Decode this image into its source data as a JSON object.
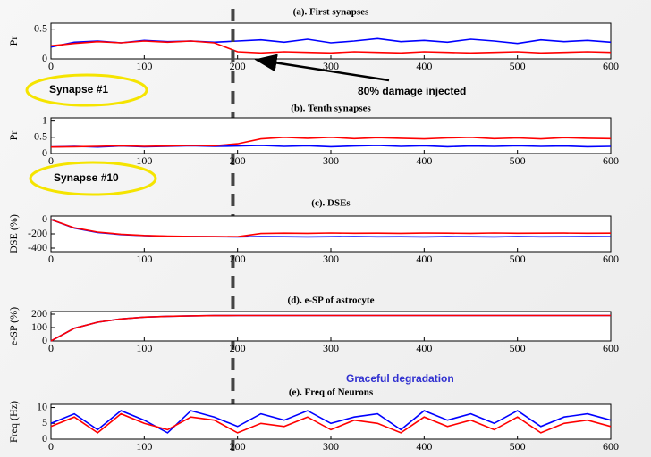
{
  "chart_data": [
    {
      "type": "line",
      "title": "(a). First synapses",
      "y_label": "Pr",
      "x": [
        0,
        25,
        50,
        75,
        100,
        125,
        150,
        175,
        200,
        225,
        250,
        275,
        300,
        325,
        350,
        375,
        400,
        425,
        450,
        475,
        500,
        525,
        550,
        575,
        600
      ],
      "xlim": [
        0,
        600
      ],
      "xticks": [
        0,
        100,
        200,
        300,
        400,
        500,
        600
      ],
      "ylim": [
        0,
        0.6
      ],
      "yticks": [
        0,
        0.5
      ],
      "event_x": 195,
      "annotations": [
        "Synapse #1",
        "80% damage injected"
      ],
      "series": [
        {
          "color": "#0000ff",
          "values": [
            0.2,
            0.28,
            0.3,
            0.27,
            0.31,
            0.29,
            0.3,
            0.28,
            0.3,
            0.32,
            0.28,
            0.33,
            0.27,
            0.3,
            0.34,
            0.29,
            0.31,
            0.28,
            0.33,
            0.3,
            0.26,
            0.32,
            0.29,
            0.31,
            0.28
          ]
        },
        {
          "color": "#ff0000",
          "values": [
            0.22,
            0.26,
            0.29,
            0.27,
            0.3,
            0.28,
            0.3,
            0.27,
            0.12,
            0.1,
            0.12,
            0.11,
            0.1,
            0.12,
            0.11,
            0.1,
            0.12,
            0.11,
            0.1,
            0.11,
            0.12,
            0.1,
            0.11,
            0.12,
            0.11
          ]
        }
      ]
    },
    {
      "type": "line",
      "title": "(b). Tenth synapses",
      "y_label": "Pr",
      "x": [
        0,
        25,
        50,
        75,
        100,
        125,
        150,
        175,
        200,
        225,
        250,
        275,
        300,
        325,
        350,
        375,
        400,
        425,
        450,
        475,
        500,
        525,
        550,
        575,
        600
      ],
      "xlim": [
        0,
        600
      ],
      "xticks": [
        0,
        100,
        200,
        300,
        400,
        500,
        600
      ],
      "ylim": [
        0,
        1.1
      ],
      "yticks": [
        0,
        0.5,
        1
      ],
      "annotations": [
        "Synapse #10"
      ],
      "series": [
        {
          "color": "#0000ff",
          "values": [
            0.2,
            0.22,
            0.2,
            0.23,
            0.21,
            0.22,
            0.24,
            0.22,
            0.23,
            0.25,
            0.22,
            0.24,
            0.21,
            0.23,
            0.25,
            0.22,
            0.24,
            0.21,
            0.23,
            0.22,
            0.24,
            0.22,
            0.23,
            0.21,
            0.22
          ]
        },
        {
          "color": "#ff0000",
          "values": [
            0.2,
            0.21,
            0.22,
            0.24,
            0.22,
            0.23,
            0.25,
            0.24,
            0.3,
            0.45,
            0.5,
            0.47,
            0.5,
            0.46,
            0.49,
            0.47,
            0.45,
            0.48,
            0.5,
            0.46,
            0.48,
            0.45,
            0.49,
            0.47,
            0.46
          ]
        }
      ]
    },
    {
      "type": "line",
      "title": "(c). DSEs",
      "y_label": "DSE (%)",
      "x": [
        0,
        25,
        50,
        75,
        100,
        125,
        150,
        175,
        200,
        225,
        250,
        275,
        300,
        325,
        350,
        375,
        400,
        425,
        450,
        475,
        500,
        525,
        550,
        575,
        600
      ],
      "xlim": [
        0,
        600
      ],
      "xticks": [
        0,
        100,
        200,
        300,
        400,
        500,
        600
      ],
      "ylim": [
        -450,
        50
      ],
      "yticks": [
        -400,
        -200,
        0
      ],
      "series": [
        {
          "color": "#0000ff",
          "values": [
            0,
            -120,
            -180,
            -210,
            -225,
            -235,
            -238,
            -240,
            -242,
            -238,
            -240,
            -243,
            -240,
            -238,
            -241,
            -240,
            -243,
            -239,
            -240,
            -242,
            -238,
            -241,
            -240,
            -239,
            -240
          ]
        },
        {
          "color": "#ff0000",
          "values": [
            0,
            -115,
            -175,
            -205,
            -222,
            -232,
            -236,
            -238,
            -240,
            -195,
            -190,
            -192,
            -188,
            -191,
            -190,
            -193,
            -189,
            -190,
            -192,
            -188,
            -191,
            -190,
            -189,
            -191,
            -190
          ]
        }
      ]
    },
    {
      "type": "line",
      "title": "(d). e-SP of astrocyte",
      "y_label": "e-SP (%)",
      "x": [
        0,
        25,
        50,
        75,
        100,
        125,
        150,
        175,
        200,
        225,
        250,
        275,
        300,
        325,
        350,
        375,
        400,
        425,
        450,
        475,
        500,
        525,
        550,
        575,
        600
      ],
      "xlim": [
        0,
        600
      ],
      "xticks": [
        0,
        100,
        200,
        300,
        400,
        500,
        600
      ],
      "ylim": [
        0,
        220
      ],
      "yticks": [
        0,
        100,
        200
      ],
      "annotations": [
        "Graceful degradation"
      ],
      "series": [
        {
          "color": "#0000ff",
          "values": [
            0,
            95,
            140,
            165,
            178,
            184,
            187,
            189,
            190,
            190,
            190,
            190,
            190,
            190,
            190,
            190,
            190,
            190,
            190,
            190,
            190,
            190,
            190,
            190,
            190
          ]
        },
        {
          "color": "#ff0000",
          "values": [
            0,
            95,
            140,
            165,
            178,
            184,
            187,
            189,
            190,
            190,
            190,
            190,
            190,
            190,
            190,
            190,
            190,
            190,
            190,
            190,
            190,
            190,
            190,
            190,
            190
          ]
        }
      ]
    },
    {
      "type": "line",
      "title": "(e). Freq of Neurons",
      "y_label": "Freq (Hz)",
      "x": [
        0,
        25,
        50,
        75,
        100,
        125,
        150,
        175,
        200,
        225,
        250,
        275,
        300,
        325,
        350,
        375,
        400,
        425,
        450,
        475,
        500,
        525,
        550,
        575,
        600
      ],
      "xlim": [
        0,
        600
      ],
      "xticks": [
        0,
        100,
        200,
        300,
        400,
        500,
        600
      ],
      "ylim": [
        0,
        11
      ],
      "yticks": [
        0,
        5,
        10
      ],
      "series": [
        {
          "color": "#0000ff",
          "values": [
            5,
            8,
            3,
            9,
            6,
            2,
            9,
            7,
            4,
            8,
            6,
            9,
            5,
            7,
            8,
            3,
            9,
            6,
            8,
            5,
            9,
            4,
            7,
            8,
            6
          ]
        },
        {
          "color": "#ff0000",
          "values": [
            4,
            7,
            2,
            8,
            5,
            3,
            7,
            6,
            2,
            5,
            4,
            7,
            3,
            6,
            5,
            2,
            7,
            4,
            6,
            3,
            7,
            2,
            5,
            6,
            4
          ]
        }
      ]
    }
  ]
}
